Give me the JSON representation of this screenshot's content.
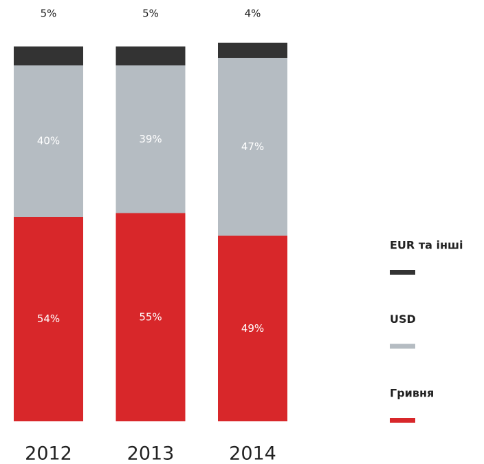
{
  "chart_data": {
    "type": "stacked_bar",
    "categories": [
      "2012",
      "2013",
      "2014"
    ],
    "series": [
      {
        "name": "Гривня",
        "color": "#d8272a",
        "values": [
          54,
          55,
          49
        ],
        "value_labels": [
          "54%",
          "55%",
          "49%"
        ]
      },
      {
        "name": "USD",
        "color": "#b5bcc2",
        "values": [
          40,
          39,
          47
        ],
        "value_labels": [
          "40%",
          "39%",
          "47%"
        ]
      },
      {
        "name": "EUR та інші",
        "color": "#333333",
        "values": [
          5,
          5,
          4
        ],
        "value_labels": [
          "5%",
          "5%",
          "4%"
        ]
      }
    ],
    "legend": "right"
  }
}
